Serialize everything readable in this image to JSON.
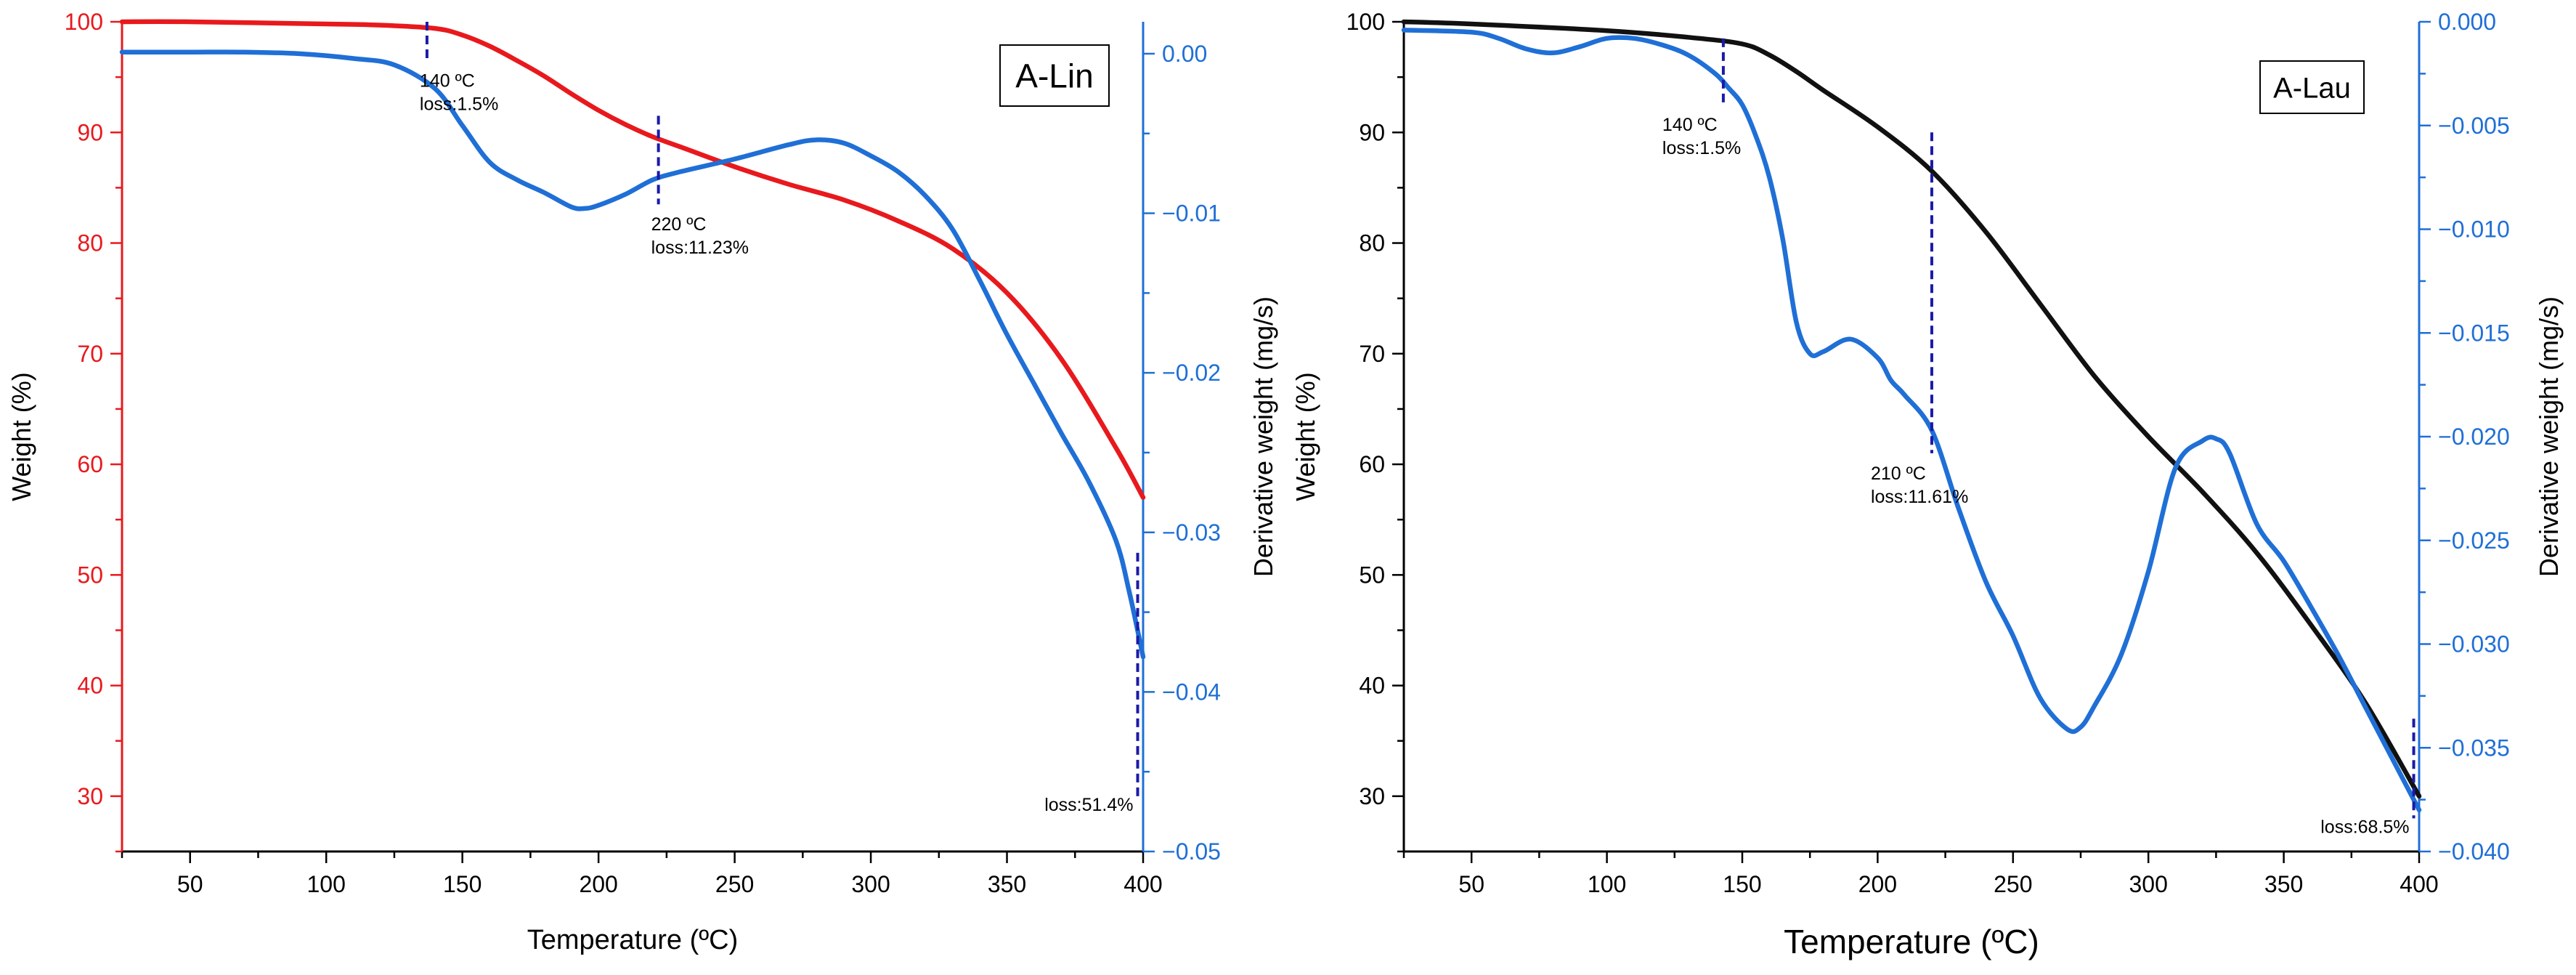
{
  "colors": {
    "red": "#e8191d",
    "blue": "#1f6fd6",
    "black": "#111111",
    "ann": "#1a1aa8",
    "axis": "#000000"
  },
  "chart_data": [
    {
      "type": "line",
      "title": "A-Lin",
      "xlabel": "Temperature (ºC)",
      "ylabel": "Weight (%)",
      "y2label": "Derivative weight (mg/s)",
      "xlim": [
        25,
        400
      ],
      "ylim": [
        25,
        100
      ],
      "y2lim": [
        -0.05,
        0.002
      ],
      "xticks": [
        50,
        100,
        150,
        200,
        250,
        300,
        350,
        400
      ],
      "yticks": [
        30,
        40,
        50,
        60,
        70,
        80,
        90,
        100
      ],
      "y2ticks": [
        -0.05,
        -0.04,
        -0.03,
        -0.02,
        -0.01,
        0.0
      ],
      "y2ticklabels": [
        "−0.05",
        "−0.04",
        "−0.03",
        "−0.02",
        "−0.01",
        "0.00"
      ],
      "y_axis_color": "#e8191d",
      "series": [
        {
          "name": "Weight",
          "axis": "left",
          "color": "#e8191d",
          "x": [
            25,
            50,
            100,
            120,
            140,
            150,
            160,
            170,
            180,
            190,
            200,
            210,
            220,
            230,
            250,
            270,
            290,
            310,
            330,
            350,
            370,
            390,
            400
          ],
          "values": [
            100,
            100,
            99.8,
            99.7,
            99.4,
            98.8,
            97.8,
            96.5,
            95.1,
            93.5,
            92.0,
            90.7,
            89.6,
            88.7,
            86.9,
            85.3,
            83.9,
            82.0,
            79.5,
            75.5,
            69.5,
            61.5,
            57.0
          ]
        },
        {
          "name": "Derivative weight",
          "axis": "right",
          "color": "#1f6fd6",
          "x": [
            25,
            50,
            70,
            90,
            110,
            125,
            140,
            150,
            160,
            170,
            180,
            190,
            195,
            200,
            210,
            220,
            230,
            250,
            270,
            280,
            290,
            300,
            310,
            320,
            330,
            340,
            350,
            360,
            370,
            380,
            390,
            395,
            400
          ],
          "values": [
            0.0001,
            0.0001,
            0.0001,
            0.0,
            -0.0003,
            -0.0007,
            -0.0022,
            -0.0045,
            -0.0068,
            -0.0079,
            -0.0087,
            -0.0096,
            -0.0097,
            -0.0095,
            -0.0088,
            -0.0079,
            -0.0074,
            -0.0066,
            -0.0057,
            -0.0054,
            -0.0056,
            -0.0064,
            -0.0074,
            -0.0089,
            -0.011,
            -0.0142,
            -0.0176,
            -0.0207,
            -0.0238,
            -0.0268,
            -0.0305,
            -0.0338,
            -0.0378
          ]
        }
      ],
      "markers": [
        {
          "x": 137,
          "y_top": 100,
          "y_bottom": 96.5,
          "label1": "140 ºC",
          "label2": "loss:1.5%"
        },
        {
          "x": 222,
          "y_top": 91.5,
          "y_bottom": 83.5,
          "label1": "220 ºC",
          "label2": "loss:11.23%"
        },
        {
          "x": 398,
          "y_top": 52,
          "y_bottom": 30,
          "label1": "",
          "label2": "loss:51.4%"
        }
      ]
    },
    {
      "type": "line",
      "title": "A-Lau",
      "xlabel": "Temperature (ºC)",
      "ylabel": "Weight (%)",
      "y2label": "Derivative weight (mg/s)",
      "xlim": [
        25,
        400
      ],
      "ylim": [
        25,
        100
      ],
      "y2lim": [
        -0.04,
        0.0
      ],
      "xticks": [
        50,
        100,
        150,
        200,
        250,
        300,
        350,
        400
      ],
      "yticks": [
        30,
        40,
        50,
        60,
        70,
        80,
        90,
        100
      ],
      "y2ticks": [
        -0.04,
        -0.035,
        -0.03,
        -0.025,
        -0.02,
        -0.015,
        -0.01,
        -0.005,
        0.0
      ],
      "y2ticklabels": [
        "−0.040",
        "−0.035",
        "−0.030",
        "−0.025",
        "−0.020",
        "−0.015",
        "−0.010",
        "−0.005",
        "0.000"
      ],
      "y_axis_color": "#000000",
      "series": [
        {
          "name": "Weight",
          "axis": "left",
          "color": "#111111",
          "x": [
            25,
            50,
            100,
            130,
            150,
            160,
            170,
            180,
            200,
            220,
            240,
            260,
            280,
            300,
            320,
            340,
            360,
            380,
            400
          ],
          "values": [
            100,
            99.8,
            99.2,
            98.6,
            98.0,
            97.0,
            95.5,
            93.8,
            90.5,
            86.5,
            81.0,
            74.5,
            68.0,
            62.5,
            57.5,
            52.0,
            45.5,
            38.5,
            30.0
          ]
        },
        {
          "name": "Derivative weight",
          "axis": "right",
          "color": "#1f6fd6",
          "x": [
            25,
            50,
            60,
            70,
            80,
            90,
            100,
            110,
            120,
            130,
            140,
            145,
            150,
            155,
            160,
            165,
            170,
            175,
            180,
            190,
            200,
            205,
            210,
            220,
            230,
            240,
            250,
            260,
            270,
            275,
            280,
            290,
            300,
            310,
            320,
            325,
            330,
            340,
            350,
            360,
            370,
            380,
            390,
            400
          ],
          "values": [
            -0.0004,
            -0.0005,
            -0.0008,
            -0.0013,
            -0.0015,
            -0.0012,
            -0.0008,
            -0.0008,
            -0.0011,
            -0.0016,
            -0.0025,
            -0.0032,
            -0.004,
            -0.0055,
            -0.0075,
            -0.0105,
            -0.0145,
            -0.016,
            -0.0159,
            -0.0153,
            -0.0162,
            -0.0173,
            -0.018,
            -0.0197,
            -0.0235,
            -0.027,
            -0.0296,
            -0.0326,
            -0.0341,
            -0.034,
            -0.033,
            -0.0305,
            -0.0265,
            -0.0215,
            -0.0202,
            -0.0201,
            -0.0208,
            -0.0242,
            -0.026,
            -0.0282,
            -0.0305,
            -0.033,
            -0.0355,
            -0.038
          ]
        }
      ],
      "markers": [
        {
          "x": 143,
          "y_top": 98.5,
          "y_bottom": 92.5,
          "label1": "140 ºC",
          "label2": "loss:1.5%"
        },
        {
          "x": 220,
          "y_top": 90,
          "y_bottom": 61,
          "label1": "210 ºC",
          "label2": "loss:11.61%"
        },
        {
          "x": 398,
          "y_top": 37,
          "y_bottom": 28,
          "label1": "",
          "label2": "loss:68.5%"
        }
      ]
    }
  ]
}
